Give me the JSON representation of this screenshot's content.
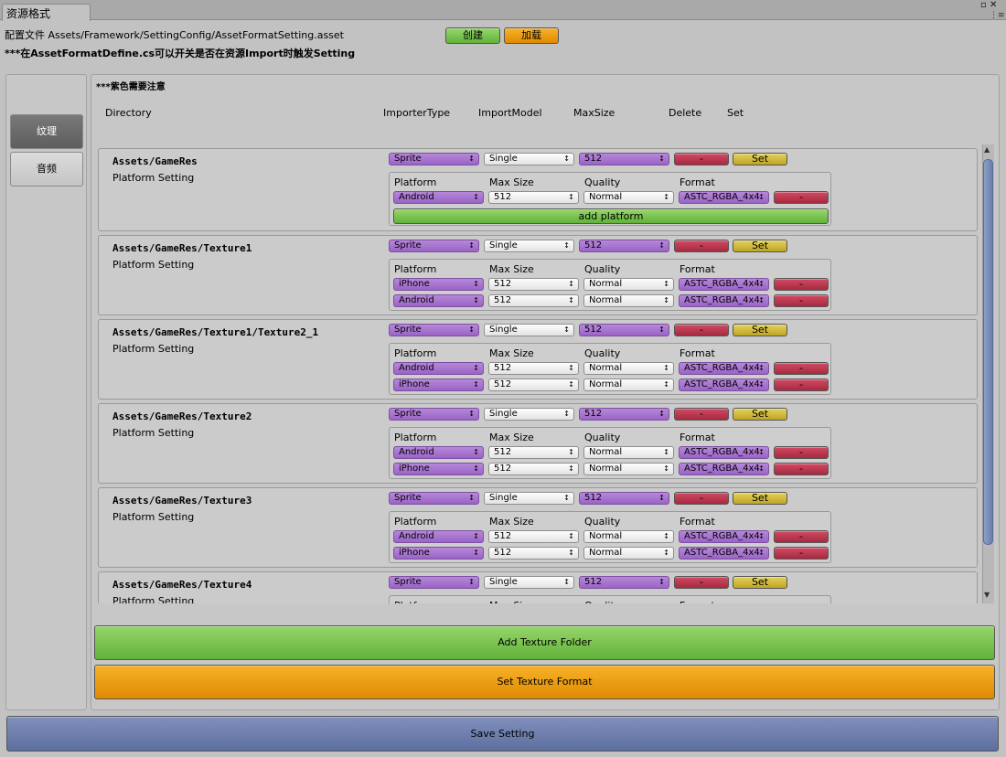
{
  "window": {
    "tab_title": "资源格式",
    "controls": "▫ ✕",
    "menu_icon": "⋮≡"
  },
  "header": {
    "config_path": "配置文件 Assets/Framework/SettingConfig/AssetFormatSetting.asset",
    "note": "***在AssetFormatDefine.cs可以开关是否在资源Import时触发Setting",
    "create_label": "创建",
    "load_label": "加载"
  },
  "sidebar": {
    "items": [
      {
        "label": "纹理",
        "selected": true
      },
      {
        "label": "音频",
        "selected": false
      }
    ]
  },
  "main": {
    "purple_note": "***紫色需要注意",
    "columns": [
      "Directory",
      "ImporterType",
      "ImportModel",
      "MaxSize",
      "Delete",
      "Set"
    ],
    "delete_label": "-",
    "set_label": "Set",
    "platform_setting_label": "Platform Setting",
    "platform_headers": [
      "Platform",
      "Max Size",
      "Quality",
      "Format"
    ],
    "add_platform_label": "add platform"
  },
  "folders": [
    {
      "path": "Assets/GameRes",
      "importer": "Sprite",
      "model": "Single",
      "max_size": "512",
      "platforms": [
        {
          "platform": "Android",
          "max_size": "512",
          "quality": "Normal",
          "format": "ASTC_RGBA_4x4"
        }
      ],
      "add_platform": true
    },
    {
      "path": "Assets/GameRes/Texture1",
      "importer": "Sprite",
      "model": "Single",
      "max_size": "512",
      "platforms": [
        {
          "platform": "iPhone",
          "max_size": "512",
          "quality": "Normal",
          "format": "ASTC_RGBA_4x4"
        },
        {
          "platform": "Android",
          "max_size": "512",
          "quality": "Normal",
          "format": "ASTC_RGBA_4x4"
        }
      ]
    },
    {
      "path": "Assets/GameRes/Texture1/Texture2_1",
      "importer": "Sprite",
      "model": "Single",
      "max_size": "512",
      "platforms": [
        {
          "platform": "Android",
          "max_size": "512",
          "quality": "Normal",
          "format": "ASTC_RGBA_4x4"
        },
        {
          "platform": "iPhone",
          "max_size": "512",
          "quality": "Normal",
          "format": "ASTC_RGBA_4x4"
        }
      ]
    },
    {
      "path": "Assets/GameRes/Texture2",
      "importer": "Sprite",
      "model": "Single",
      "max_size": "512",
      "platforms": [
        {
          "platform": "Android",
          "max_size": "512",
          "quality": "Normal",
          "format": "ASTC_RGBA_4x4"
        },
        {
          "platform": "iPhone",
          "max_size": "512",
          "quality": "Normal",
          "format": "ASTC_RGBA_4x4"
        }
      ]
    },
    {
      "path": "Assets/GameRes/Texture3",
      "importer": "Sprite",
      "model": "Single",
      "max_size": "512",
      "platforms": [
        {
          "platform": "Android",
          "max_size": "512",
          "quality": "Normal",
          "format": "ASTC_RGBA_4x4"
        },
        {
          "platform": "iPhone",
          "max_size": "512",
          "quality": "Normal",
          "format": "ASTC_RGBA_4x4"
        }
      ]
    },
    {
      "path": "Assets/GameRes/Texture4",
      "importer": "Sprite",
      "model": "Single",
      "max_size": "512",
      "platforms": []
    }
  ],
  "scrollbar": {
    "up": "▲",
    "down": "▼"
  },
  "buttons": {
    "add_texture_folder": "Add Texture Folder",
    "set_texture_format": "Set Texture Format",
    "save_setting": "Save Setting"
  },
  "colors": {
    "purple": "#9a63c6",
    "red": "#a62a40",
    "yellow": "#bfa524",
    "green": "#62b23a",
    "orange": "#df8a00",
    "blue": "#5d6f9f"
  }
}
